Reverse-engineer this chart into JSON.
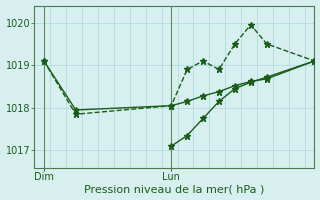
{
  "background_color": "#d8eff0",
  "grid_color": "#b8dde0",
  "line_color": "#1a5c1a",
  "title": "Pression niveau de la mer( hPa )",
  "ylim": [
    1016.6,
    1020.4
  ],
  "yticks": [
    1017,
    1018,
    1019,
    1020
  ],
  "day_labels": [
    "Dim",
    "Lun"
  ],
  "day_positions": [
    0.0,
    4.0
  ],
  "xlim": [
    -0.3,
    8.5
  ],
  "series1_x": [
    0.0,
    1.0,
    4.0,
    4.5,
    5.0,
    5.5,
    6.0,
    6.5,
    7.0,
    8.5
  ],
  "series1_y": [
    1019.1,
    1017.85,
    1018.05,
    1018.9,
    1019.1,
    1018.9,
    1019.5,
    1019.95,
    1019.5,
    1019.1
  ],
  "series2_x": [
    0.0,
    1.0,
    4.0,
    4.5,
    5.0,
    5.5,
    6.0,
    6.5,
    7.0,
    8.5
  ],
  "series2_y": [
    1019.1,
    1017.95,
    1018.05,
    1018.15,
    1018.28,
    1018.38,
    1018.52,
    1018.62,
    1018.68,
    1019.1
  ],
  "series3_x": [
    4.0,
    4.5,
    5.0,
    5.5,
    6.0,
    6.5,
    7.0,
    8.5
  ],
  "series3_y": [
    1017.1,
    1017.35,
    1017.75,
    1018.15,
    1018.45,
    1018.6,
    1018.72,
    1019.1
  ],
  "series1_style": "--",
  "series2_style": "-",
  "series3_style": "-",
  "marker": "*",
  "markersize": 5,
  "linewidth": 1.0,
  "vline_color": "#5a8a5a",
  "spine_color": "#4a7a4a",
  "tick_fontsize": 7,
  "label_fontsize": 8
}
